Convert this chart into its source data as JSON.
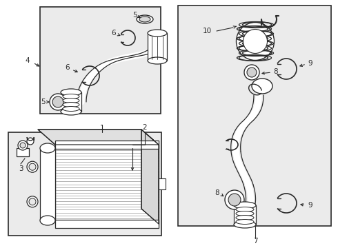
{
  "bg_color": "#ffffff",
  "line_color": "#2a2a2a",
  "box_fill": "#ebebeb",
  "figsize": [
    4.9,
    3.6
  ],
  "dpi": 100,
  "xlim": [
    0,
    490
  ],
  "ylim": [
    360,
    0
  ]
}
